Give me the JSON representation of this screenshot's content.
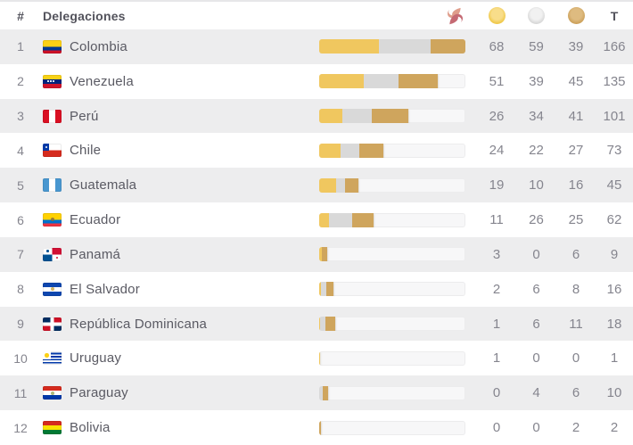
{
  "header": {
    "rank_label": "#",
    "delegations_label": "Delegaciones",
    "total_label": "T",
    "icons": [
      "event-logo-icon",
      "gold-medal-icon",
      "silver-medal-icon",
      "bronze-medal-icon"
    ]
  },
  "colors": {
    "gold": "#f0c75f",
    "silver": "#d9d9d9",
    "bronze": "#cfa55d",
    "row_alt": "#ededee",
    "bar_track": "#f7f7f8",
    "text_dark": "#53535c",
    "text_muted": "#85858e",
    "logo_light": "#df9d8b",
    "logo_dark": "#c56a73"
  },
  "chart_data": {
    "type": "bar",
    "orientation": "horizontal",
    "stacked": true,
    "series": [
      "gold",
      "silver",
      "bronze"
    ],
    "max_total": 166,
    "rows": [
      {
        "rank": 1,
        "country": "Colombia",
        "flag": "colombia",
        "gold": 68,
        "silver": 59,
        "bronze": 39,
        "total": 166
      },
      {
        "rank": 2,
        "country": "Venezuela",
        "flag": "venezuela",
        "gold": 51,
        "silver": 39,
        "bronze": 45,
        "total": 135
      },
      {
        "rank": 3,
        "country": "Perú",
        "flag": "peru",
        "gold": 26,
        "silver": 34,
        "bronze": 41,
        "total": 101
      },
      {
        "rank": 4,
        "country": "Chile",
        "flag": "chile",
        "gold": 24,
        "silver": 22,
        "bronze": 27,
        "total": 73
      },
      {
        "rank": 5,
        "country": "Guatemala",
        "flag": "guatemala",
        "gold": 19,
        "silver": 10,
        "bronze": 16,
        "total": 45
      },
      {
        "rank": 6,
        "country": "Ecuador",
        "flag": "ecuador",
        "gold": 11,
        "silver": 26,
        "bronze": 25,
        "total": 62
      },
      {
        "rank": 7,
        "country": "Panamá",
        "flag": "panama",
        "gold": 3,
        "silver": 0,
        "bronze": 6,
        "total": 9
      },
      {
        "rank": 8,
        "country": "El Salvador",
        "flag": "el-salvador",
        "gold": 2,
        "silver": 6,
        "bronze": 8,
        "total": 16
      },
      {
        "rank": 9,
        "country": "República Dominicana",
        "flag": "republica-dominicana",
        "gold": 1,
        "silver": 6,
        "bronze": 11,
        "total": 18
      },
      {
        "rank": 10,
        "country": "Uruguay",
        "flag": "uruguay",
        "gold": 1,
        "silver": 0,
        "bronze": 0,
        "total": 1
      },
      {
        "rank": 11,
        "country": "Paraguay",
        "flag": "paraguay",
        "gold": 0,
        "silver": 4,
        "bronze": 6,
        "total": 10
      },
      {
        "rank": 12,
        "country": "Bolivia",
        "flag": "bolivia",
        "gold": 0,
        "silver": 0,
        "bronze": 2,
        "total": 2
      }
    ]
  }
}
